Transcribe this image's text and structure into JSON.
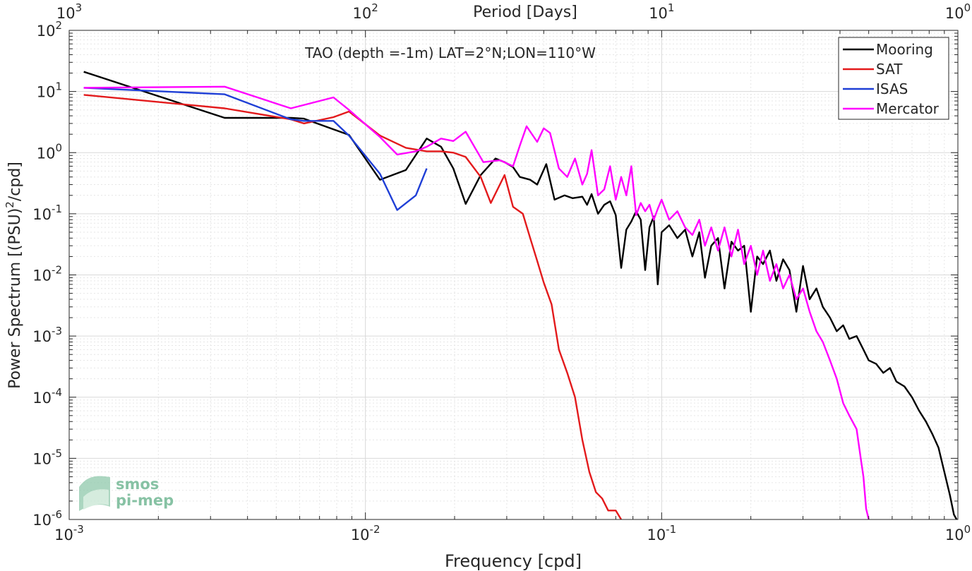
{
  "chart_data": {
    "type": "line",
    "title": "TAO (depth =-1m) LAT=2°N;LON=110°W",
    "xlabel": "Frequency [cpd]",
    "ylabel": "Power Spectrum [(PSU)",
    "ylabel_sup": "2",
    "ylabel_tail": "/cpd]",
    "x2label": "Period [Days]",
    "xscale": "log",
    "yscale": "log",
    "xlim": [
      0.001,
      1
    ],
    "ylim": [
      1e-06,
      100
    ],
    "grid": true,
    "legend_position": "top-right",
    "x_ticks": [
      {
        "base": "10",
        "exp": "-3"
      },
      {
        "base": "10",
        "exp": "-2"
      },
      {
        "base": "10",
        "exp": "-1"
      },
      {
        "base": "10",
        "exp": "0"
      }
    ],
    "x2_ticks": [
      {
        "base": "10",
        "exp": "3"
      },
      {
        "base": "10",
        "exp": "2"
      },
      {
        "base": "10",
        "exp": "1"
      },
      {
        "base": "10",
        "exp": "0"
      }
    ],
    "y_ticks": [
      {
        "base": "10",
        "exp": "-6"
      },
      {
        "base": "10",
        "exp": "-5"
      },
      {
        "base": "10",
        "exp": "-4"
      },
      {
        "base": "10",
        "exp": "-3"
      },
      {
        "base": "10",
        "exp": "-2"
      },
      {
        "base": "10",
        "exp": "-1"
      },
      {
        "base": "10",
        "exp": "0"
      },
      {
        "base": "10",
        "exp": "1"
      },
      {
        "base": "10",
        "exp": "2"
      }
    ],
    "series": [
      {
        "name": "Mooring",
        "color": "#000000",
        "points": [
          [
            0.00112,
            21
          ],
          [
            0.00335,
            3.7
          ],
          [
            0.0056,
            3.7
          ],
          [
            0.0062,
            3.6
          ],
          [
            0.0078,
            2.4
          ],
          [
            0.0088,
            1.95
          ],
          [
            0.0112,
            0.36
          ],
          [
            0.0137,
            0.52
          ],
          [
            0.0161,
            1.7
          ],
          [
            0.018,
            1.25
          ],
          [
            0.0198,
            0.55
          ],
          [
            0.0218,
            0.145
          ],
          [
            0.0245,
            0.43
          ],
          [
            0.0275,
            0.8
          ],
          [
            0.0295,
            0.7
          ],
          [
            0.0315,
            0.58
          ],
          [
            0.0332,
            0.4
          ],
          [
            0.036,
            0.36
          ],
          [
            0.038,
            0.3
          ],
          [
            0.0408,
            0.65
          ],
          [
            0.0435,
            0.17
          ],
          [
            0.047,
            0.2
          ],
          [
            0.05,
            0.18
          ],
          [
            0.054,
            0.19
          ],
          [
            0.056,
            0.14
          ],
          [
            0.058,
            0.21
          ],
          [
            0.061,
            0.1
          ],
          [
            0.064,
            0.14
          ],
          [
            0.067,
            0.16
          ],
          [
            0.07,
            0.095
          ],
          [
            0.073,
            0.013
          ],
          [
            0.076,
            0.055
          ],
          [
            0.079,
            0.075
          ],
          [
            0.082,
            0.11
          ],
          [
            0.085,
            0.08
          ],
          [
            0.088,
            0.012
          ],
          [
            0.091,
            0.06
          ],
          [
            0.094,
            0.09
          ],
          [
            0.097,
            0.007
          ],
          [
            0.1,
            0.05
          ],
          [
            0.106,
            0.065
          ],
          [
            0.113,
            0.04
          ],
          [
            0.12,
            0.055
          ],
          [
            0.127,
            0.02
          ],
          [
            0.134,
            0.05
          ],
          [
            0.14,
            0.009
          ],
          [
            0.147,
            0.03
          ],
          [
            0.155,
            0.04
          ],
          [
            0.163,
            0.006
          ],
          [
            0.172,
            0.035
          ],
          [
            0.181,
            0.025
          ],
          [
            0.19,
            0.03
          ],
          [
            0.2,
            0.0025
          ],
          [
            0.21,
            0.02
          ],
          [
            0.22,
            0.015
          ],
          [
            0.232,
            0.025
          ],
          [
            0.244,
            0.008
          ],
          [
            0.257,
            0.018
          ],
          [
            0.27,
            0.012
          ],
          [
            0.285,
            0.0025
          ],
          [
            0.3,
            0.014
          ],
          [
            0.316,
            0.004
          ],
          [
            0.333,
            0.006
          ],
          [
            0.35,
            0.003
          ],
          [
            0.37,
            0.002
          ],
          [
            0.39,
            0.0012
          ],
          [
            0.41,
            0.0015
          ],
          [
            0.43,
            0.0009
          ],
          [
            0.455,
            0.001
          ],
          [
            0.48,
            0.0006
          ],
          [
            0.5,
            0.0004
          ],
          [
            0.53,
            0.00035
          ],
          [
            0.56,
            0.00025
          ],
          [
            0.59,
            0.0003
          ],
          [
            0.62,
            0.00018
          ],
          [
            0.66,
            0.00015
          ],
          [
            0.7,
            0.0001
          ],
          [
            0.74,
            6e-05
          ],
          [
            0.78,
            4e-05
          ],
          [
            0.82,
            2.5e-05
          ],
          [
            0.86,
            1.5e-05
          ],
          [
            0.9,
            6e-06
          ],
          [
            0.94,
            2.5e-06
          ],
          [
            0.97,
            1.2e-06
          ],
          [
            0.99,
            1e-06
          ]
        ]
      },
      {
        "name": "SAT",
        "color": "#e31a1c",
        "points": [
          [
            0.00112,
            8.8
          ],
          [
            0.00335,
            5.3
          ],
          [
            0.0056,
            3.5
          ],
          [
            0.0062,
            3.0
          ],
          [
            0.0078,
            3.8
          ],
          [
            0.0088,
            4.7
          ],
          [
            0.0112,
            1.9
          ],
          [
            0.0137,
            1.2
          ],
          [
            0.0161,
            1.05
          ],
          [
            0.018,
            1.05
          ],
          [
            0.0198,
            1.0
          ],
          [
            0.0218,
            0.85
          ],
          [
            0.0245,
            0.4
          ],
          [
            0.0265,
            0.15
          ],
          [
            0.0295,
            0.43
          ],
          [
            0.0315,
            0.13
          ],
          [
            0.034,
            0.1
          ],
          [
            0.036,
            0.04
          ],
          [
            0.038,
            0.017
          ],
          [
            0.04,
            0.0075
          ],
          [
            0.0425,
            0.0033
          ],
          [
            0.045,
            0.0006
          ],
          [
            0.048,
            0.00025
          ],
          [
            0.051,
            0.0001
          ],
          [
            0.054,
            2e-05
          ],
          [
            0.057,
            6e-06
          ],
          [
            0.06,
            2.8e-06
          ],
          [
            0.063,
            2.2e-06
          ],
          [
            0.066,
            1.4e-06
          ],
          [
            0.07,
            1.4e-06
          ],
          [
            0.073,
            1e-06
          ]
        ]
      },
      {
        "name": "ISAS",
        "color": "#1f3fd6",
        "points": [
          [
            0.00112,
            11.5
          ],
          [
            0.00335,
            9.0
          ],
          [
            0.0056,
            3.5
          ],
          [
            0.0062,
            3.3
          ],
          [
            0.0078,
            3.3
          ],
          [
            0.0088,
            1.9
          ],
          [
            0.0112,
            0.45
          ],
          [
            0.0128,
            0.115
          ],
          [
            0.0148,
            0.2
          ],
          [
            0.0161,
            0.55
          ]
        ]
      },
      {
        "name": "Mercator",
        "color": "#ff00ff",
        "points": [
          [
            0.00112,
            11.5
          ],
          [
            0.00335,
            12
          ],
          [
            0.0056,
            5.3
          ],
          [
            0.0078,
            8
          ],
          [
            0.0088,
            5.0
          ],
          [
            0.0112,
            1.8
          ],
          [
            0.0128,
            0.93
          ],
          [
            0.0148,
            1.05
          ],
          [
            0.0161,
            1.25
          ],
          [
            0.018,
            1.7
          ],
          [
            0.0198,
            1.55
          ],
          [
            0.0218,
            2.2
          ],
          [
            0.025,
            0.7
          ],
          [
            0.0285,
            0.75
          ],
          [
            0.0315,
            0.6
          ],
          [
            0.0332,
            1.3
          ],
          [
            0.035,
            2.7
          ],
          [
            0.038,
            1.5
          ],
          [
            0.04,
            2.5
          ],
          [
            0.042,
            2.1
          ],
          [
            0.045,
            0.55
          ],
          [
            0.048,
            0.4
          ],
          [
            0.051,
            0.8
          ],
          [
            0.054,
            0.3
          ],
          [
            0.056,
            0.45
          ],
          [
            0.058,
            1.1
          ],
          [
            0.061,
            0.2
          ],
          [
            0.064,
            0.25
          ],
          [
            0.067,
            0.6
          ],
          [
            0.07,
            0.17
          ],
          [
            0.073,
            0.4
          ],
          [
            0.076,
            0.2
          ],
          [
            0.079,
            0.6
          ],
          [
            0.082,
            0.095
          ],
          [
            0.085,
            0.15
          ],
          [
            0.088,
            0.11
          ],
          [
            0.091,
            0.14
          ],
          [
            0.094,
            0.08
          ],
          [
            0.097,
            0.12
          ],
          [
            0.1,
            0.17
          ],
          [
            0.106,
            0.08
          ],
          [
            0.113,
            0.11
          ],
          [
            0.12,
            0.06
          ],
          [
            0.127,
            0.045
          ],
          [
            0.134,
            0.08
          ],
          [
            0.14,
            0.03
          ],
          [
            0.147,
            0.06
          ],
          [
            0.155,
            0.025
          ],
          [
            0.163,
            0.06
          ],
          [
            0.172,
            0.02
          ],
          [
            0.181,
            0.055
          ],
          [
            0.19,
            0.015
          ],
          [
            0.2,
            0.03
          ],
          [
            0.21,
            0.01
          ],
          [
            0.22,
            0.025
          ],
          [
            0.232,
            0.008
          ],
          [
            0.244,
            0.015
          ],
          [
            0.257,
            0.006
          ],
          [
            0.27,
            0.01
          ],
          [
            0.285,
            0.004
          ],
          [
            0.3,
            0.006
          ],
          [
            0.316,
            0.0025
          ],
          [
            0.333,
            0.0012
          ],
          [
            0.35,
            0.0008
          ],
          [
            0.37,
            0.0004
          ],
          [
            0.39,
            0.0002
          ],
          [
            0.41,
            8e-05
          ],
          [
            0.43,
            5e-05
          ],
          [
            0.455,
            3e-05
          ],
          [
            0.47,
            1e-05
          ],
          [
            0.48,
            5e-06
          ],
          [
            0.49,
            1.5e-06
          ],
          [
            0.5,
            1e-06
          ]
        ]
      }
    ]
  },
  "logo": {
    "line1": "smos",
    "line2": "pi-mep"
  }
}
